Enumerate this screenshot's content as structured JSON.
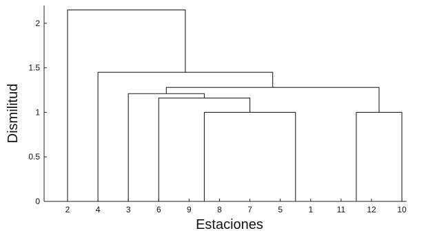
{
  "chart_data": {
    "type": "dendrogram",
    "xlabel": "Estaciones",
    "ylabel": "Dismilitud",
    "ylim": [
      0,
      2.2
    ],
    "y_ticks": [
      {
        "value": 0,
        "label": "0"
      },
      {
        "value": 0.5,
        "label": "0.5"
      },
      {
        "value": 1,
        "label": "1"
      },
      {
        "value": 1.5,
        "label": "1.5"
      },
      {
        "value": 2,
        "label": "2"
      }
    ],
    "leaves": [
      "2",
      "4",
      "3",
      "6",
      "9",
      "8",
      "7",
      "5",
      "1",
      "11",
      "12",
      "10"
    ],
    "merges": [
      {
        "a": 9,
        "b": 10,
        "height": 0
      },
      {
        "a": 4,
        "b": 5,
        "height": 0
      },
      {
        "a": 7,
        "b": 8,
        "height": 0
      },
      {
        "a": "n2",
        "b": "n3",
        "height": 1.0
      },
      {
        "a": 11,
        "b": "n1",
        "height": 1.0
      },
      {
        "a": 3,
        "b": "n4",
        "height": 1.16
      },
      {
        "a": 2,
        "b": "n6",
        "height": 1.21
      },
      {
        "a": "n7",
        "b": "n5",
        "height": 1.28
      },
      {
        "a": 1,
        "b": "n8",
        "height": 1.45
      },
      {
        "a": 0,
        "b": "n9",
        "height": 2.15
      }
    ],
    "grid": false,
    "legend": "none",
    "line_color": "#222222"
  }
}
